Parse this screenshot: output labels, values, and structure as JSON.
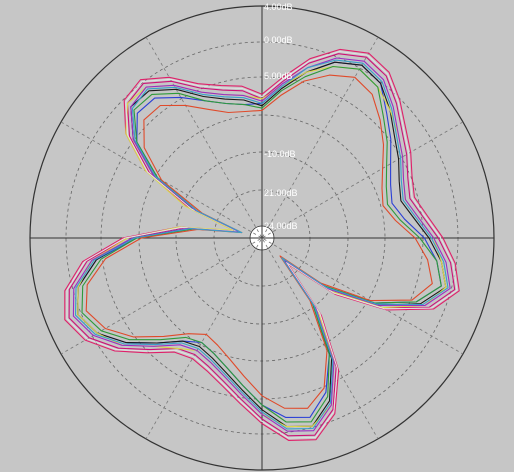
{
  "chart_data": {
    "type": "polar",
    "title": "",
    "radial_unit": "dB",
    "ring_labels": [
      "4.00dB",
      "0.00dB",
      "5.00dB",
      "-10.0dB",
      "21.00dB",
      "24.00dB"
    ],
    "spokes_every_deg": 30,
    "background": "#c6c6c6",
    "series": [
      {
        "color": "#e0206a",
        "r": [
          0.62,
          0.7,
          0.8,
          0.88,
          0.92,
          0.9,
          0.84,
          0.78,
          0.74,
          0.7,
          0.68,
          0.72,
          0.78,
          0.84,
          0.88,
          0.8,
          0.62,
          0.4,
          0.16,
          0.42,
          0.66,
          0.82,
          0.9,
          0.88,
          0.8,
          0.72,
          0.66,
          0.62,
          0.6,
          0.62,
          0.7,
          0.8,
          0.88,
          0.92,
          0.88,
          0.78,
          0.6,
          0.36,
          0.12,
          0.34,
          0.58,
          0.74,
          0.84,
          0.86,
          0.8,
          0.72,
          0.68,
          0.66
        ]
      },
      {
        "color": "#cc1177",
        "r": [
          0.6,
          0.68,
          0.78,
          0.86,
          0.9,
          0.88,
          0.82,
          0.76,
          0.72,
          0.68,
          0.66,
          0.7,
          0.76,
          0.82,
          0.86,
          0.78,
          0.6,
          0.38,
          0.14,
          0.4,
          0.64,
          0.8,
          0.88,
          0.86,
          0.78,
          0.7,
          0.64,
          0.6,
          0.58,
          0.6,
          0.68,
          0.78,
          0.86,
          0.9,
          0.86,
          0.76,
          0.58,
          0.34,
          0.1,
          0.32,
          0.56,
          0.72,
          0.82,
          0.84,
          0.78,
          0.7,
          0.66,
          0.64
        ]
      },
      {
        "color": "#2a3fd6",
        "r": [
          0.58,
          0.66,
          0.74,
          0.82,
          0.86,
          0.84,
          0.76,
          0.7,
          0.64,
          0.6,
          0.58,
          0.62,
          0.7,
          0.76,
          0.8,
          0.72,
          0.56,
          0.34,
          0.12,
          0.36,
          0.58,
          0.72,
          0.8,
          0.78,
          0.72,
          0.64,
          0.58,
          0.54,
          0.52,
          0.56,
          0.64,
          0.74,
          0.82,
          0.86,
          0.82,
          0.72,
          0.54,
          0.3,
          0.1,
          0.3,
          0.52,
          0.68,
          0.76,
          0.76,
          0.7,
          0.64,
          0.6,
          0.58
        ]
      },
      {
        "color": "#1a1a1a",
        "r": [
          0.57,
          0.65,
          0.74,
          0.82,
          0.86,
          0.84,
          0.78,
          0.72,
          0.68,
          0.64,
          0.62,
          0.66,
          0.72,
          0.78,
          0.82,
          0.74,
          0.58,
          0.36,
          0.13,
          0.38,
          0.6,
          0.76,
          0.84,
          0.82,
          0.74,
          0.66,
          0.6,
          0.56,
          0.54,
          0.56,
          0.64,
          0.74,
          0.82,
          0.86,
          0.82,
          0.72,
          0.56,
          0.32,
          0.11,
          0.32,
          0.54,
          0.7,
          0.8,
          0.8,
          0.74,
          0.66,
          0.62,
          0.6
        ]
      },
      {
        "color": "#d8d84a",
        "r": [
          0.6,
          0.66,
          0.74,
          0.8,
          0.84,
          0.82,
          0.78,
          0.74,
          0.7,
          0.66,
          0.64,
          0.68,
          0.74,
          0.78,
          0.82,
          0.76,
          0.6,
          0.38,
          0.15,
          0.4,
          0.62,
          0.78,
          0.84,
          0.82,
          0.76,
          0.68,
          0.62,
          0.58,
          0.56,
          0.6,
          0.66,
          0.76,
          0.82,
          0.86,
          0.82,
          0.74,
          0.58,
          0.36,
          0.13,
          0.36,
          0.58,
          0.74,
          0.82,
          0.82,
          0.76,
          0.68,
          0.64,
          0.62
        ]
      },
      {
        "color": "#2e9a3a",
        "r": [
          0.56,
          0.64,
          0.72,
          0.8,
          0.84,
          0.82,
          0.74,
          0.68,
          0.62,
          0.58,
          0.56,
          0.6,
          0.68,
          0.76,
          0.8,
          0.72,
          0.56,
          0.34,
          0.12,
          0.36,
          0.58,
          0.74,
          0.82,
          0.8,
          0.72,
          0.64,
          0.58,
          0.54,
          0.52,
          0.54,
          0.62,
          0.72,
          0.8,
          0.84,
          0.8,
          0.7,
          0.54,
          0.3,
          0.1,
          0.3,
          0.52,
          0.68,
          0.78,
          0.78,
          0.72,
          0.64,
          0.6,
          0.58
        ]
      },
      {
        "color": "#e0e0e0",
        "r": [
          0.61,
          0.69,
          0.79,
          0.87,
          0.91,
          0.89,
          0.83,
          0.77,
          0.73,
          0.69,
          0.67,
          0.71,
          0.77,
          0.83,
          0.87,
          0.79,
          0.61,
          0.39,
          0.15,
          0.41,
          0.65,
          0.81,
          0.89,
          0.87,
          0.79,
          0.71,
          0.65,
          0.61,
          0.59,
          0.61,
          0.69,
          0.79,
          0.87,
          0.91,
          0.87,
          0.77,
          0.59,
          0.35,
          0.11,
          0.33,
          0.57,
          0.73,
          0.83,
          0.85,
          0.79,
          0.71,
          0.67,
          0.65
        ]
      },
      {
        "color": "#e04a2a",
        "r": [
          0.55,
          0.62,
          0.7,
          0.76,
          0.8,
          0.78,
          0.72,
          0.66,
          0.6,
          0.56,
          0.54,
          0.58,
          0.66,
          0.72,
          0.76,
          0.7,
          0.54,
          0.32,
          0.11,
          0.34,
          0.56,
          0.7,
          0.76,
          0.74,
          0.68,
          0.6,
          0.54,
          0.5,
          0.48,
          0.52,
          0.6,
          0.7,
          0.78,
          0.82,
          0.78,
          0.68,
          0.52,
          0.28,
          0.09,
          0.28,
          0.5,
          0.64,
          0.72,
          0.72,
          0.66,
          0.6,
          0.56,
          0.55
        ]
      },
      {
        "color": "#9a2fc4",
        "r": [
          0.59,
          0.67,
          0.76,
          0.84,
          0.88,
          0.86,
          0.8,
          0.74,
          0.7,
          0.66,
          0.64,
          0.68,
          0.74,
          0.8,
          0.84,
          0.76,
          0.58,
          0.36,
          0.13,
          0.38,
          0.62,
          0.78,
          0.86,
          0.84,
          0.76,
          0.68,
          0.62,
          0.58,
          0.56,
          0.58,
          0.66,
          0.76,
          0.84,
          0.88,
          0.84,
          0.74,
          0.56,
          0.32,
          0.1,
          0.31,
          0.54,
          0.7,
          0.8,
          0.82,
          0.76,
          0.68,
          0.64,
          0.62
        ]
      },
      {
        "color": "#3aa0c8",
        "r": [
          0.58,
          0.66,
          0.76,
          0.83,
          0.87,
          0.85,
          0.79,
          0.73,
          0.69,
          0.65,
          0.63,
          0.67,
          0.73,
          0.79,
          0.83,
          0.75,
          0.57,
          0.35,
          0.12,
          0.37,
          0.61,
          0.77,
          0.85,
          0.83,
          0.75,
          0.67,
          0.61,
          0.57,
          0.55,
          0.57,
          0.65,
          0.75,
          0.83,
          0.87,
          0.83,
          0.73,
          0.55,
          0.31,
          0.09,
          0.3,
          0.53,
          0.69,
          0.79,
          0.81,
          0.75,
          0.67,
          0.63,
          0.61
        ]
      }
    ]
  }
}
